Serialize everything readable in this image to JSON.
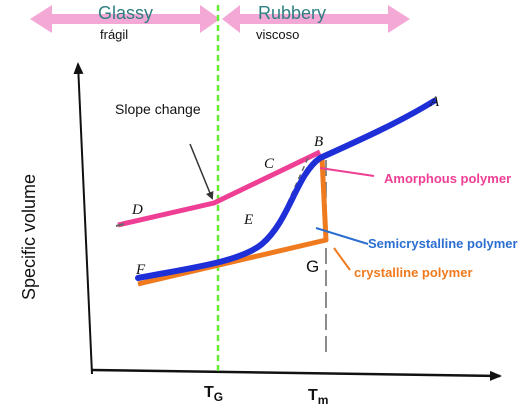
{
  "phases": {
    "glassy": "Glassy",
    "glassy_sub": "frágil",
    "rubbery": "Rubbery",
    "rubbery_sub": "viscoso"
  },
  "axis": {
    "ylabel": "Specific volume",
    "tg_main": "T",
    "tg_sub": "G",
    "tm_main": "T",
    "tm_sub": "m"
  },
  "annotations": {
    "slope_change": "Slope change",
    "amorphous": "Amorphous polymer",
    "semicrystalline": "Semicrystalline polymer",
    "crystalline": "crystalline polymer",
    "g": "G"
  },
  "points": {
    "a": "A",
    "b": "B",
    "c": "C",
    "d": "D",
    "e": "E",
    "f": "F"
  },
  "colors": {
    "phase_arrow": "#f4a8d6",
    "phase_text": "#2f7f82",
    "tg_line": "#66ee33",
    "amorphous": "#ee3f95",
    "semicrystalline": "#1f2fd8",
    "crystalline": "#f07a1e",
    "semicrystalline_label": "#2b6fd1"
  }
}
